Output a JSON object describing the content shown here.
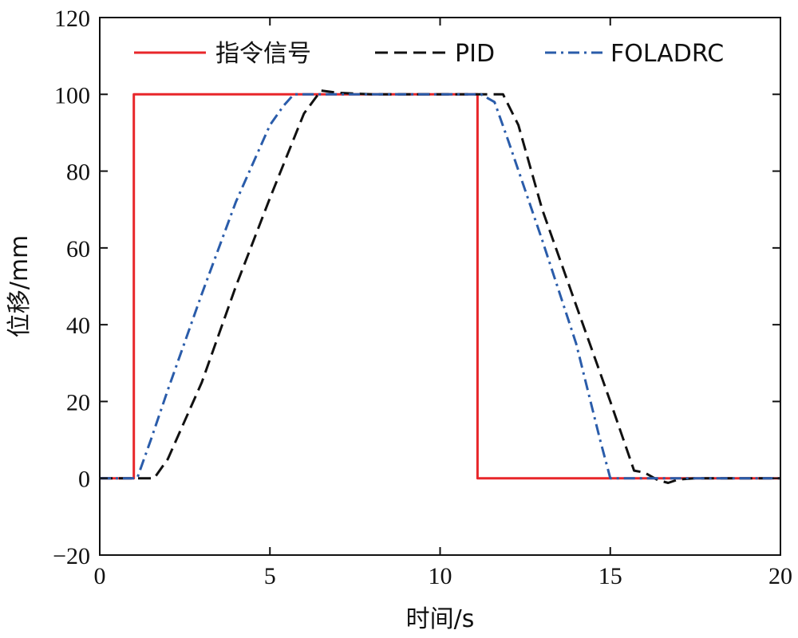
{
  "chart_data": {
    "type": "line",
    "xlabel": "时间/s",
    "ylabel": "位移/mm",
    "xlim": [
      0,
      20
    ],
    "ylim": [
      -20,
      120
    ],
    "xticks": [
      0,
      5,
      10,
      15,
      20
    ],
    "yticks": [
      -20,
      0,
      20,
      40,
      60,
      80,
      100,
      120
    ],
    "xtick_labels": [
      "0",
      "5",
      "10",
      "15",
      "20"
    ],
    "ytick_labels": [
      "−20",
      "0",
      "20",
      "40",
      "60",
      "80",
      "100",
      "120"
    ],
    "grid": false,
    "legend_position": "top",
    "series": [
      {
        "name": "指令信号",
        "color": "#e8262a",
        "style": "solid",
        "x": [
          0,
          1.0,
          1.0,
          11.1,
          11.1,
          20
        ],
        "y": [
          0,
          0,
          100,
          100,
          0,
          0
        ]
      },
      {
        "name": "PID",
        "color": "#111111",
        "style": "dashed",
        "x": [
          0,
          1.6,
          2.0,
          3.0,
          4.0,
          5.0,
          6.0,
          6.5,
          7.0,
          8.0,
          10.0,
          11.0,
          11.85,
          12.3,
          13.0,
          14.0,
          15.0,
          15.7,
          16.0,
          16.4,
          16.7,
          17.0,
          17.5,
          20.0
        ],
        "y": [
          0,
          0,
          5,
          25,
          50,
          73,
          95,
          101,
          100.4,
          100,
          100,
          100,
          100,
          92,
          70,
          45,
          20,
          2,
          1.5,
          -0.5,
          -1.2,
          -0.3,
          0,
          0
        ]
      },
      {
        "name": "FOLADRC",
        "color": "#2a5caa",
        "style": "dashdot",
        "x": [
          0,
          1.1,
          1.5,
          2.0,
          3.0,
          4.0,
          5.0,
          5.4,
          5.7,
          6.0,
          10.0,
          11.2,
          11.6,
          12.0,
          13.0,
          14.0,
          14.7,
          15.0,
          20.0
        ],
        "y": [
          0,
          0,
          10,
          23,
          48,
          72,
          92,
          97,
          100,
          100,
          100,
          100,
          98,
          88,
          62,
          35,
          10,
          0,
          0
        ]
      }
    ]
  }
}
